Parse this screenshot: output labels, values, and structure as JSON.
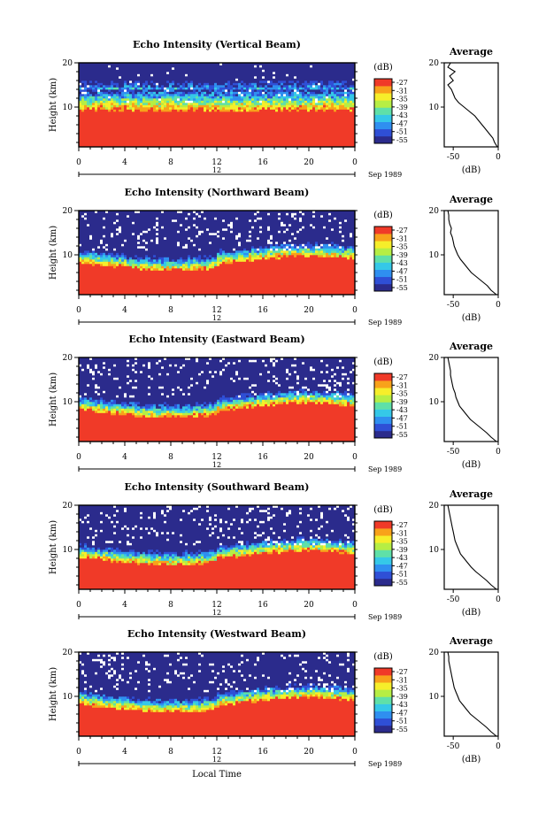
{
  "figure": {
    "xlabel": "Local Time",
    "date_label": "Sep 1989",
    "noon_label": "12",
    "ylabel": "Height (km)",
    "colorbar_unit": "(dB)",
    "avg_title": "Average",
    "avg_xlabel": "(dB)"
  },
  "colors": {
    "scale": [
      "#2b2b8c",
      "#2f4fd6",
      "#2f8ff0",
      "#35c8e8",
      "#5fe0a8",
      "#b6ee44",
      "#f6ee2a",
      "#f8a21a",
      "#f03a28"
    ]
  },
  "chart_data": [
    {
      "type": "heatmap",
      "title": "Echo Intensity (Vertical Beam)",
      "xlabel": "Local Time",
      "ylabel": "Height (km)",
      "x_ticks": [
        "0",
        "4",
        "8",
        "12",
        "16",
        "20",
        "0"
      ],
      "y_ticks": [
        "20",
        "10"
      ],
      "xlim": [
        0,
        24
      ],
      "ylim": [
        1,
        20
      ],
      "colorbar": {
        "unit": "(dB)",
        "ticks": [
          "-27",
          "-31",
          "-35",
          "-39",
          "-43",
          "-47",
          "-51",
          "-55"
        ]
      },
      "profile": {
        "title": "Average",
        "xlabel": "(dB)",
        "x_ticks": [
          "-50",
          "0"
        ],
        "y_ticks": [
          "20",
          "10"
        ],
        "xlim": [
          -60,
          0
        ],
        "height_km": [
          1,
          2,
          3,
          4,
          5,
          6,
          7,
          8,
          9,
          10,
          11,
          12,
          13,
          14,
          15,
          16,
          17,
          18,
          19,
          20
        ],
        "db": [
          -1,
          -4,
          -6,
          -10,
          -14,
          -18,
          -22,
          -26,
          -32,
          -38,
          -44,
          -48,
          -50,
          -52,
          -56,
          -50,
          -54,
          -48,
          -56,
          -53
        ]
      }
    },
    {
      "type": "heatmap",
      "title": "Echo Intensity (Northward Beam)",
      "xlabel": "Local Time",
      "ylabel": "Height (km)",
      "x_ticks": [
        "0",
        "4",
        "8",
        "12",
        "16",
        "20",
        "0"
      ],
      "y_ticks": [
        "20",
        "10"
      ],
      "xlim": [
        0,
        24
      ],
      "ylim": [
        1,
        20
      ],
      "colorbar": {
        "unit": "(dB)",
        "ticks": [
          "-27",
          "-31",
          "-35",
          "-39",
          "-43",
          "-47",
          "-51",
          "-55"
        ]
      },
      "profile": {
        "title": "Average",
        "xlabel": "(dB)",
        "x_ticks": [
          "-50",
          "0"
        ],
        "y_ticks": [
          "20",
          "10"
        ],
        "xlim": [
          -60,
          0
        ],
        "height_km": [
          1,
          2,
          3,
          4,
          5,
          6,
          7,
          8,
          9,
          10,
          11,
          12,
          13,
          14,
          15,
          16,
          17,
          18,
          19,
          20
        ],
        "db": [
          -2,
          -8,
          -12,
          -18,
          -24,
          -30,
          -34,
          -38,
          -42,
          -45,
          -47,
          -49,
          -50,
          -51,
          -53,
          -52,
          -54,
          -55,
          -55,
          -56
        ]
      }
    },
    {
      "type": "heatmap",
      "title": "Echo Intensity (Eastward Beam)",
      "xlabel": "Local Time",
      "ylabel": "Height (km)",
      "x_ticks": [
        "0",
        "4",
        "8",
        "12",
        "16",
        "20",
        "0"
      ],
      "y_ticks": [
        "20",
        "10"
      ],
      "xlim": [
        0,
        24
      ],
      "ylim": [
        1,
        20
      ],
      "colorbar": {
        "unit": "(dB)",
        "ticks": [
          "-27",
          "-31",
          "-35",
          "-39",
          "-43",
          "-47",
          "-51",
          "-55"
        ]
      },
      "profile": {
        "title": "Average",
        "xlabel": "(dB)",
        "x_ticks": [
          "-50",
          "0"
        ],
        "y_ticks": [
          "20",
          "10"
        ],
        "xlim": [
          -60,
          0
        ],
        "height_km": [
          1,
          2,
          3,
          4,
          5,
          6,
          7,
          8,
          9,
          10,
          11,
          12,
          13,
          14,
          15,
          16,
          17,
          18,
          19,
          20
        ],
        "db": [
          -2,
          -8,
          -13,
          -19,
          -25,
          -31,
          -35,
          -39,
          -43,
          -45,
          -47,
          -48,
          -50,
          -51,
          -52,
          -53,
          -53,
          -54,
          -55,
          -56
        ]
      }
    },
    {
      "type": "heatmap",
      "title": "Echo Intensity (Southward Beam)",
      "xlabel": "Local Time",
      "ylabel": "Height (km)",
      "x_ticks": [
        "0",
        "4",
        "8",
        "12",
        "16",
        "20",
        "0"
      ],
      "y_ticks": [
        "20",
        "10"
      ],
      "xlim": [
        0,
        24
      ],
      "ylim": [
        1,
        20
      ],
      "colorbar": {
        "unit": "(dB)",
        "ticks": [
          "-27",
          "-31",
          "-35",
          "-39",
          "-43",
          "-47",
          "-51",
          "-55"
        ]
      },
      "profile": {
        "title": "Average",
        "xlabel": "(dB)",
        "x_ticks": [
          "-50",
          "0"
        ],
        "y_ticks": [
          "20",
          "10"
        ],
        "xlim": [
          -60,
          0
        ],
        "height_km": [
          1,
          2,
          3,
          4,
          5,
          6,
          7,
          8,
          9,
          10,
          11,
          12,
          13,
          14,
          15,
          16,
          17,
          18,
          19,
          20
        ],
        "db": [
          -2,
          -8,
          -13,
          -19,
          -25,
          -30,
          -34,
          -38,
          -42,
          -44,
          -46,
          -48,
          -49,
          -50,
          -51,
          -52,
          -53,
          -54,
          -55,
          -56
        ]
      }
    },
    {
      "type": "heatmap",
      "title": "Echo Intensity (Westward Beam)",
      "xlabel": "Local Time",
      "ylabel": "Height (km)",
      "x_ticks": [
        "0",
        "4",
        "8",
        "12",
        "16",
        "20",
        "0"
      ],
      "y_ticks": [
        "20",
        "10"
      ],
      "xlim": [
        0,
        24
      ],
      "ylim": [
        1,
        20
      ],
      "colorbar": {
        "unit": "(dB)",
        "ticks": [
          "-27",
          "-31",
          "-35",
          "-39",
          "-43",
          "-47",
          "-51",
          "-55"
        ]
      },
      "profile": {
        "title": "Average",
        "xlabel": "(dB)",
        "x_ticks": [
          "-50",
          "0"
        ],
        "y_ticks": [
          "20",
          "10"
        ],
        "xlim": [
          -60,
          0
        ],
        "height_km": [
          1,
          2,
          3,
          4,
          5,
          6,
          7,
          8,
          9,
          10,
          11,
          12,
          13,
          14,
          15,
          16,
          17,
          18,
          19,
          20
        ],
        "db": [
          -2,
          -8,
          -13,
          -19,
          -25,
          -31,
          -35,
          -39,
          -43,
          -45,
          -47,
          -49,
          -50,
          -51,
          -52,
          -53,
          -54,
          -55,
          -55,
          -56
        ]
      }
    }
  ]
}
